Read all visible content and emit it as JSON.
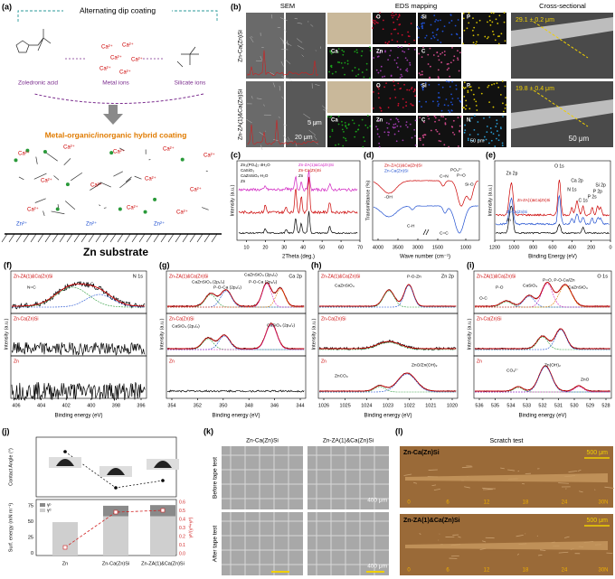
{
  "samples": [
    "Zn-ZA(1)&Ca(Zn)Si",
    "Zn-Ca(Zn)Si",
    "Zn"
  ],
  "be_label": "Binding energy (eV)",
  "int_label": "Intensity (a.u.)",
  "a": {
    "label": "(a)",
    "title": "Alternating dip coating",
    "reagents": [
      "Zoledronic acid",
      "Metal ions",
      "Silicate ions"
    ],
    "coating": "Metal-organic/inorganic hybrid coating",
    "substrate": "Zn substrate",
    "ions": [
      "Ca²⁺",
      "Zn²⁺"
    ]
  },
  "b": {
    "label": "(b)",
    "headers": [
      "SEM",
      "EDS mapping",
      "Cross-sectional"
    ],
    "thickness": [
      "29.1 ± 0.2 μm",
      "19.8 ± 0.4 μm"
    ],
    "scales": [
      "5 μm",
      "20 μm",
      "50 μm"
    ],
    "elements": [
      "O",
      "Si",
      "P",
      "Ca",
      "Zn",
      "C",
      "N"
    ]
  },
  "c": {
    "label": "(c)",
    "xlabel": "2Theta (deg.)",
    "xticks": [
      "10",
      "20",
      "30",
      "40",
      "50",
      "60",
      "70"
    ],
    "phases": [
      "Zn₃(PO₄)₂·4H₂O",
      "CaSiO₃",
      "CaZnSiO₄·H₂O",
      "Zn"
    ]
  },
  "d": {
    "label": "(d)",
    "ylabel": "Transmittance (%)",
    "xlabel": "Wave number (cm⁻¹)",
    "xticks": [
      "4000",
      "3500",
      "3000",
      "1500",
      "1000"
    ],
    "bands": [
      "-OH",
      "C-H",
      "C=N",
      "C=C",
      "PO₄³⁻",
      "P=O",
      "Si-O"
    ]
  },
  "e": {
    "label": "(e)",
    "xlabel": "Binding Energy (eV)",
    "xticks": [
      "1200",
      "1000",
      "800",
      "600",
      "400",
      "200",
      "0"
    ],
    "peaks": [
      "Zn 2p",
      "O 1s",
      "Ca 2p",
      "N 1s",
      "P 2s",
      "P 2p",
      "C 1s",
      "Si 2p"
    ]
  },
  "f": {
    "label": "(f)",
    "region": "N 1s",
    "peaks": [
      "N=C",
      "N-C"
    ],
    "xticks": [
      "406",
      "404",
      "402",
      "400",
      "398",
      "396"
    ]
  },
  "g": {
    "label": "(g)",
    "region": "Ca 2p",
    "peaks": [
      "CaZnSiO₄ (2p₁/₂)",
      "CaZnSiO₄ (2p₃/₂)",
      "P-O-Ca (2p₁/₂)",
      "P-O-Ca (2p₃/₂)",
      "CaSiO₃ (2p₁/₂)",
      "CaSiO₃ (2p₃/₂)"
    ],
    "xticks": [
      "354",
      "352",
      "350",
      "348",
      "346",
      "344"
    ]
  },
  "h": {
    "label": "(h)",
    "region": "Zn 2p",
    "peaks": [
      "P-O-Zn",
      "CaZnSiO₄",
      "ZnCO₃",
      "ZnO/Zn(OH)₂"
    ],
    "xticks": [
      "1026",
      "1025",
      "1024",
      "1023",
      "1022",
      "1021",
      "1020"
    ]
  },
  "i": {
    "label": "(i)",
    "region": "O 1s",
    "peaks": [
      "O-C",
      "P-O",
      "CaSiO₃",
      "P=O, P-O-Ca/Zn",
      "CaZnSiO₄",
      "CO₃²⁻",
      "Zn(OH)₂",
      "ZnO"
    ],
    "xticks": [
      "536",
      "535",
      "534",
      "533",
      "532",
      "531",
      "530",
      "529",
      "528"
    ]
  },
  "j": {
    "label": "(j)",
    "ylabel_top": "Contact Angle (°)",
    "ylabel_bottom": "Surf. energy (mN m⁻¹)",
    "ylabel_right": "γᵖ/(γᵈ+γᵖ)",
    "yticks": [
      "75",
      "50",
      "25",
      "0"
    ],
    "y2ticks": [
      "0.6",
      "0.5",
      "0.4",
      "0.3",
      "0.2",
      "0.1",
      "0.0"
    ],
    "legend": [
      "γᵖ",
      "γᵈ"
    ]
  },
  "k": {
    "label": "(k)",
    "rows": [
      "Before tape test",
      "After tape test"
    ],
    "scale": "400 μm"
  },
  "l": {
    "label": "(l)",
    "title": "Scratch test",
    "scale": "500 μm",
    "ruler": [
      "0",
      "6",
      "12",
      "18",
      "24",
      "30N"
    ]
  }
}
